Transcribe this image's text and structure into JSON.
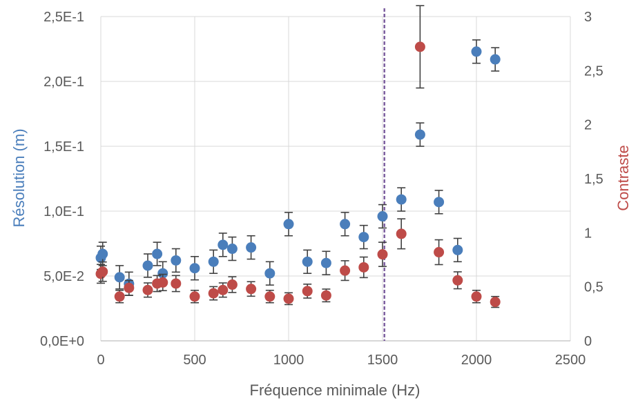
{
  "chart_data": {
    "type": "scatter",
    "title": "",
    "xlabel": "Fréquence minimale (Hz)",
    "ylabel": "Résolution (m)",
    "y2label": "Contraste",
    "xlim": [
      0,
      2500
    ],
    "ylim": [
      0,
      0.25
    ],
    "y2lim": [
      0,
      3
    ],
    "grid": true,
    "legend": "none",
    "x_ticks": [
      "0",
      "500",
      "1000",
      "1500",
      "2000",
      "2500"
    ],
    "y_ticks": [
      "0,0E+0",
      "5,0E-2",
      "1,0E-1",
      "1,5E-1",
      "2,0E-1",
      "2,5E-1"
    ],
    "y2_ticks": [
      "0",
      "0,5",
      "1",
      "1,5",
      "2",
      "2,5",
      "3"
    ],
    "vline": {
      "x": 1510,
      "color": "#7d5fa0",
      "style": "dashed"
    },
    "series": [
      {
        "axis": "left",
        "color": "#4a7ebb",
        "x": [
          0,
          10,
          100,
          150,
          250,
          300,
          330,
          400,
          500,
          600,
          650,
          700,
          800,
          900,
          1000,
          1100,
          1200,
          1300,
          1400,
          1500,
          1600,
          1700,
          1800,
          1900,
          2000,
          2100
        ],
        "y": [
          0.064,
          0.067,
          0.049,
          0.044,
          0.058,
          0.067,
          0.052,
          0.062,
          0.056,
          0.061,
          0.074,
          0.071,
          0.072,
          0.052,
          0.09,
          0.061,
          0.06,
          0.09,
          0.08,
          0.096,
          0.109,
          0.159,
          0.107,
          0.07,
          0.223,
          0.217
        ],
        "err": 0.009
      },
      {
        "axis": "right",
        "color": "#be4b48",
        "x": [
          0,
          10,
          100,
          150,
          250,
          300,
          330,
          400,
          500,
          600,
          650,
          700,
          800,
          900,
          1000,
          1100,
          1200,
          1300,
          1400,
          1500,
          1600,
          1700,
          1800,
          1900,
          2000,
          2100
        ],
        "y": [
          0.62,
          0.64,
          0.41,
          0.49,
          0.47,
          0.53,
          0.54,
          0.53,
          0.41,
          0.44,
          0.47,
          0.52,
          0.48,
          0.41,
          0.39,
          0.46,
          0.42,
          0.65,
          0.68,
          0.8,
          0.99,
          2.72,
          0.82,
          0.56,
          0.41,
          0.36
        ]
      }
    ]
  }
}
